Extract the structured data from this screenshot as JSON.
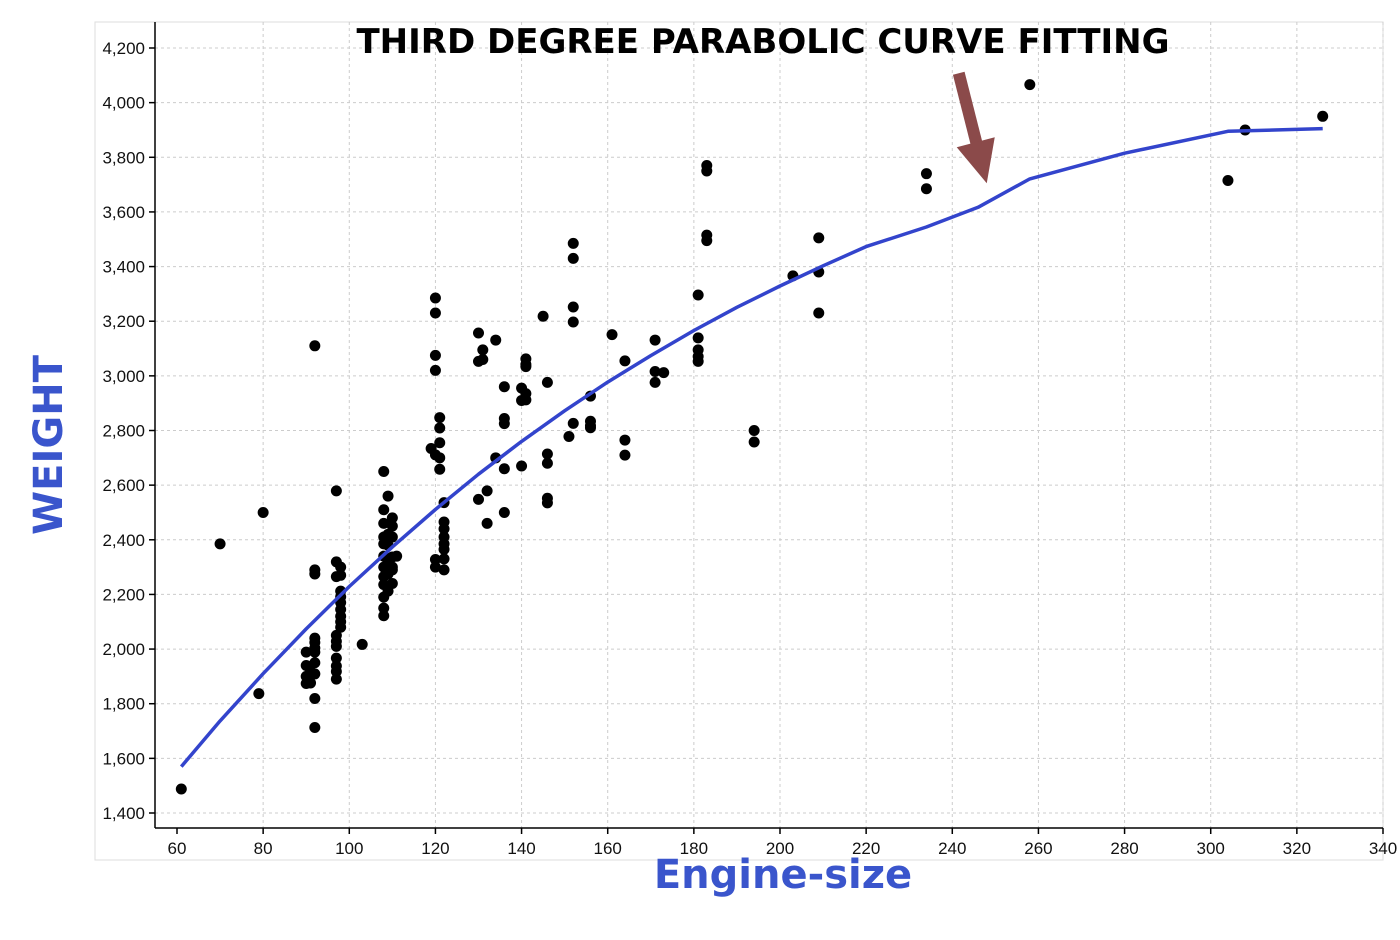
{
  "chart_data": {
    "type": "scatter",
    "title": "THIRD DEGREE PARABOLIC CURVE FITTING",
    "xlabel": "Engine-size",
    "ylabel": "WEIGHT",
    "xlim": [
      55,
      340
    ],
    "ylim": [
      1350,
      4250
    ],
    "x_ticks": [
      60,
      80,
      100,
      120,
      140,
      160,
      180,
      200,
      220,
      240,
      260,
      280,
      300,
      320,
      340
    ],
    "y_ticks": [
      1400,
      1600,
      1800,
      2000,
      2200,
      2400,
      2600,
      2800,
      3000,
      3200,
      3400,
      3600,
      3800,
      4000,
      4200
    ],
    "x_tick_labels": [
      "60",
      "80",
      "100",
      "120",
      "140",
      "160",
      "180",
      "200",
      "220",
      "240",
      "260",
      "280",
      "300",
      "320",
      "340"
    ],
    "y_tick_labels": [
      "1,400",
      "1,600",
      "1,800",
      "2,000",
      "2,200",
      "2,400",
      "2,600",
      "2,800",
      "3,000",
      "3,200",
      "3,400",
      "3,600",
      "3,800",
      "4,000",
      "4,200"
    ],
    "grid": true,
    "colors": {
      "points": "#000000",
      "fit_line": "#3344cc",
      "axis_title": "#3a55cc",
      "arrow": "#8b4a4a",
      "grid": "#cccccc"
    },
    "series": [
      {
        "kind": "scatter",
        "points": [
          [
            61,
            1488
          ],
          [
            70,
            2385
          ],
          [
            79,
            1837
          ],
          [
            80,
            2500
          ],
          [
            90,
            1874
          ],
          [
            90,
            1900
          ],
          [
            90,
            1940
          ],
          [
            90,
            1989
          ],
          [
            91,
            1876
          ],
          [
            91,
            1918
          ],
          [
            92,
            1713
          ],
          [
            92,
            1819
          ],
          [
            92,
            1909
          ],
          [
            92,
            1950
          ],
          [
            92,
            1989
          ],
          [
            92,
            2004
          ],
          [
            92,
            2024
          ],
          [
            92,
            2040
          ],
          [
            92,
            2275
          ],
          [
            92,
            2290
          ],
          [
            92,
            3110
          ],
          [
            97,
            1890
          ],
          [
            97,
            1918
          ],
          [
            97,
            1938
          ],
          [
            97,
            1967
          ],
          [
            97,
            2010
          ],
          [
            97,
            2028
          ],
          [
            97,
            2050
          ],
          [
            97,
            2265
          ],
          [
            97,
            2319
          ],
          [
            97,
            2579
          ],
          [
            98,
            2080
          ],
          [
            98,
            2100
          ],
          [
            98,
            2120
          ],
          [
            98,
            2145
          ],
          [
            98,
            2170
          ],
          [
            98,
            2191
          ],
          [
            98,
            2212
          ],
          [
            98,
            2270
          ],
          [
            98,
            2300
          ],
          [
            103,
            2017
          ],
          [
            108,
            2122
          ],
          [
            108,
            2150
          ],
          [
            108,
            2190
          ],
          [
            108,
            2236
          ],
          [
            108,
            2265
          ],
          [
            108,
            2300
          ],
          [
            108,
            2340
          ],
          [
            108,
            2385
          ],
          [
            108,
            2410
          ],
          [
            108,
            2460
          ],
          [
            108,
            2510
          ],
          [
            108,
            2650
          ],
          [
            109,
            2212
          ],
          [
            109,
            2275
          ],
          [
            109,
            2319
          ],
          [
            109,
            2380
          ],
          [
            109,
            2420
          ],
          [
            109,
            2560
          ],
          [
            110,
            2240
          ],
          [
            110,
            2290
          ],
          [
            110,
            2300
          ],
          [
            110,
            2337
          ],
          [
            110,
            2410
          ],
          [
            110,
            2450
          ],
          [
            110,
            2480
          ],
          [
            111,
            2340
          ],
          [
            119,
            2734
          ],
          [
            120,
            2300
          ],
          [
            120,
            2328
          ],
          [
            120,
            2711
          ],
          [
            120,
            3020
          ],
          [
            120,
            3075
          ],
          [
            120,
            3230
          ],
          [
            120,
            3285
          ],
          [
            121,
            2658
          ],
          [
            121,
            2700
          ],
          [
            121,
            2755
          ],
          [
            121,
            2809
          ],
          [
            121,
            2847
          ],
          [
            122,
            2290
          ],
          [
            122,
            2330
          ],
          [
            122,
            2365
          ],
          [
            122,
            2385
          ],
          [
            122,
            2410
          ],
          [
            122,
            2440
          ],
          [
            122,
            2465
          ],
          [
            122,
            2536
          ],
          [
            130,
            2548
          ],
          [
            130,
            3053
          ],
          [
            130,
            3157
          ],
          [
            131,
            3060
          ],
          [
            131,
            3095
          ],
          [
            132,
            2460
          ],
          [
            132,
            2579
          ],
          [
            134,
            2700
          ],
          [
            134,
            3131
          ],
          [
            136,
            2500
          ],
          [
            136,
            2660
          ],
          [
            136,
            2825
          ],
          [
            136,
            2844
          ],
          [
            136,
            2960
          ],
          [
            140,
            2670
          ],
          [
            140,
            2910
          ],
          [
            140,
            2955
          ],
          [
            141,
            2912
          ],
          [
            141,
            2935
          ],
          [
            141,
            3034
          ],
          [
            141,
            3042
          ],
          [
            141,
            3062
          ],
          [
            145,
            3218
          ],
          [
            146,
            2535
          ],
          [
            146,
            2552
          ],
          [
            146,
            2680
          ],
          [
            146,
            2714
          ],
          [
            146,
            2976
          ],
          [
            151,
            2778
          ],
          [
            152,
            2826
          ],
          [
            152,
            3197
          ],
          [
            152,
            3252
          ],
          [
            152,
            3430
          ],
          [
            152,
            3485
          ],
          [
            156,
            2810
          ],
          [
            156,
            2818
          ],
          [
            156,
            2834
          ],
          [
            156,
            2926
          ],
          [
            161,
            3151
          ],
          [
            164,
            2710
          ],
          [
            164,
            2765
          ],
          [
            164,
            3055
          ],
          [
            171,
            2976
          ],
          [
            171,
            3016
          ],
          [
            171,
            3131
          ],
          [
            173,
            3012
          ],
          [
            181,
            3053
          ],
          [
            181,
            3071
          ],
          [
            181,
            3095
          ],
          [
            181,
            3139
          ],
          [
            181,
            3296
          ],
          [
            183,
            3495
          ],
          [
            183,
            3515
          ],
          [
            183,
            3750
          ],
          [
            183,
            3770
          ],
          [
            194,
            2758
          ],
          [
            194,
            2800
          ],
          [
            203,
            3366
          ],
          [
            209,
            3230
          ],
          [
            209,
            3380
          ],
          [
            209,
            3505
          ],
          [
            234,
            3685
          ],
          [
            234,
            3740
          ],
          [
            258,
            4066
          ],
          [
            304,
            3715
          ],
          [
            308,
            3900
          ],
          [
            326,
            3950
          ]
        ]
      },
      {
        "kind": "fit_line",
        "x": [
          61,
          70,
          80,
          90,
          100,
          110,
          120,
          130,
          140,
          150,
          160,
          170,
          180,
          190,
          200,
          210,
          220,
          234,
          246,
          258,
          280,
          304,
          326
        ],
        "y": [
          1570,
          1737,
          1910,
          2074,
          2229,
          2374,
          2511,
          2640,
          2760,
          2872,
          2977,
          3074,
          3166,
          3251,
          3329,
          3403,
          3473,
          3545,
          3617,
          3721,
          3815,
          3895,
          3905
        ]
      }
    ],
    "annotations": [
      {
        "kind": "arrow",
        "x": 248,
        "y": 3705
      }
    ]
  }
}
